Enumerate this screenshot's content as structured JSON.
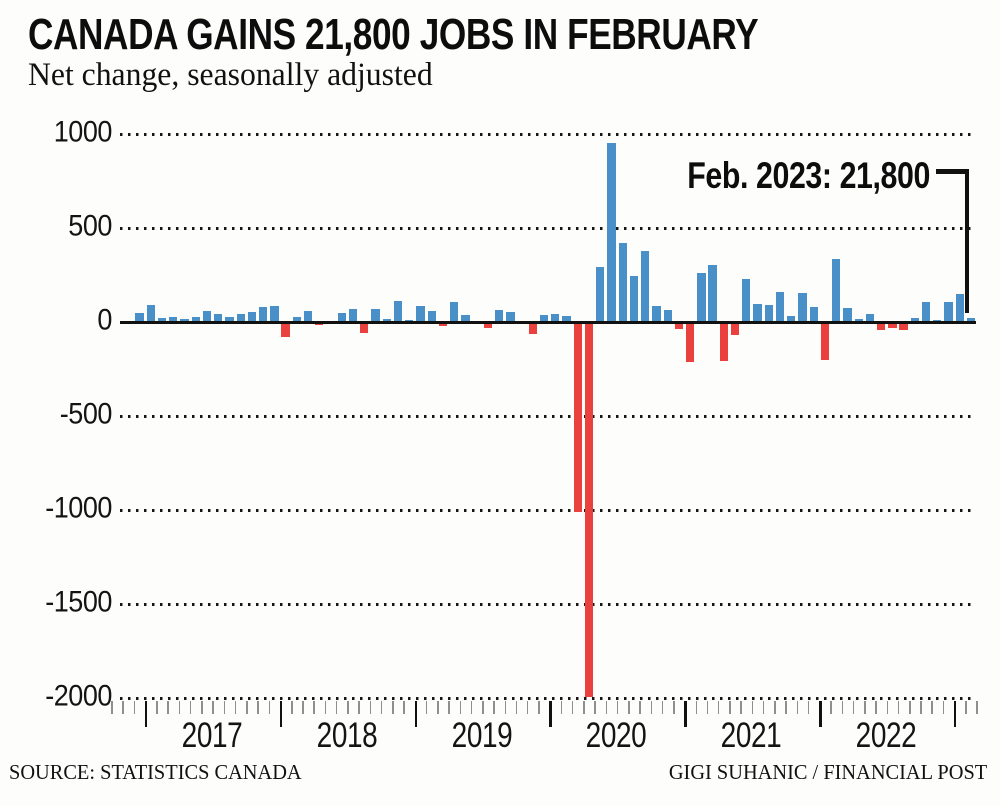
{
  "header": {
    "title": "CANADA GAINS 21,800 JOBS IN FEBRUARY",
    "subtitle": "Net change, seasonally adjusted"
  },
  "annotation": {
    "label": "Feb. 2023: 21,800",
    "points_to": "Feb 2023 bar"
  },
  "footer": {
    "source": "SOURCE: STATISTICS CANADA",
    "credit": "GIGI SUHANIC / FINANCIAL POST"
  },
  "colors": {
    "positive_bar": "#4a90c8",
    "negative_bar": "#ea403e",
    "axis": "#111111",
    "minor_tick": "#8f8f8f",
    "background": "#fdfdfc"
  },
  "chart_data": {
    "type": "bar",
    "title": "CANADA GAINS 21,800 JOBS IN FEBRUARY",
    "subtitle": "Net change, seasonally adjusted",
    "units": "thousands of jobs, net monthly change, seasonally adjusted",
    "ylim": [
      -2000,
      1000
    ],
    "yticks": [
      1000,
      500,
      0,
      -500,
      -1000,
      -1500,
      -2000
    ],
    "ytick_labels": [
      "1000",
      "500",
      "0",
      "-500",
      "-1000",
      "-1500",
      "-2000"
    ],
    "xtick_years": [
      "2017",
      "2018",
      "2019",
      "2020",
      "2021",
      "2022"
    ],
    "grid": "horizontal dotted",
    "legend": "none",
    "start_month": "2016-12",
    "end_month": "2023-02",
    "values": [
      46,
      90,
      19,
      25,
      18,
      28,
      60,
      42,
      28,
      40,
      55,
      78,
      85,
      -80,
      28,
      60,
      -14,
      -8,
      46,
      67,
      -56,
      70,
      16,
      110,
      6,
      85,
      58,
      -19,
      107,
      37,
      -4,
      -31,
      63,
      52,
      -4,
      -66,
      35,
      40,
      31,
      -1011,
      -1994,
      290,
      953,
      419,
      246,
      378,
      84,
      62,
      -35,
      -213,
      259,
      303,
      -207,
      -68,
      231,
      94,
      90,
      157,
      31,
      154,
      78,
      -200,
      337,
      73,
      15,
      40,
      -43,
      -31,
      -40,
      21,
      108,
      10,
      104,
      150,
      21.8
    ],
    "annotation": {
      "text": "Feb. 2023: 21,800",
      "value": 21.8,
      "month": "2023-02"
    }
  }
}
